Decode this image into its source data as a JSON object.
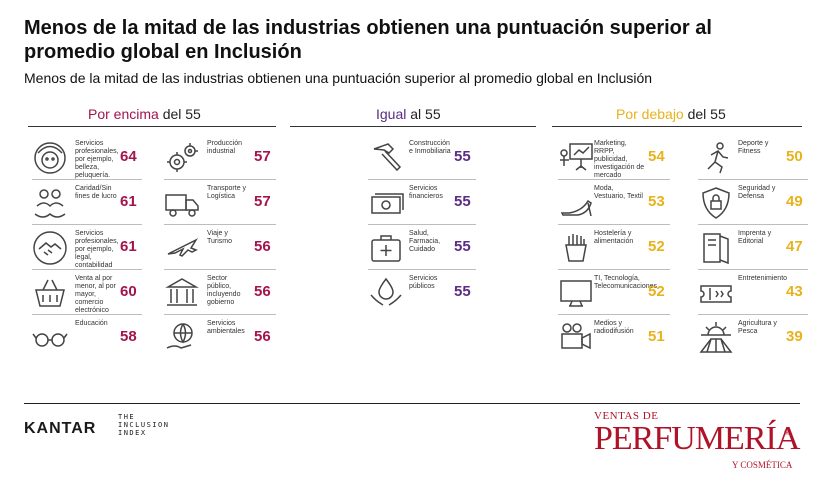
{
  "title": "Menos de la mitad de las industrias obtienen una puntuación superior al promedio global en Inclusión",
  "subtitle": "Menos de la mitad de las industrias obtienen una puntuación superior al promedio global en Inclusión",
  "colors": {
    "above": "#a3144d",
    "equal": "#5b2c83",
    "below": "#e8b21c",
    "text": "#333333"
  },
  "chart_data": {
    "type": "table",
    "groups": [
      {
        "key_word": "Por encima",
        "rest": " del 55",
        "color": "#a3144d",
        "items": [
          {
            "label": "Servicios profesionales, por ejemplo, belleza, peluquería.",
            "value": 64,
            "icon": "woman-face-icon"
          },
          {
            "label": "Producción industrial",
            "value": 57,
            "icon": "gears-icon"
          },
          {
            "label": "Caridad/Sin fines de lucro",
            "value": 61,
            "icon": "charity-hands-icon"
          },
          {
            "label": "Transporte y Logística",
            "value": 57,
            "icon": "truck-icon"
          },
          {
            "label": "Servicios profesionales, por ejemplo, legal, contabilidad",
            "value": 61,
            "icon": "handshake-icon"
          },
          {
            "label": "Viaje y Turismo",
            "value": 56,
            "icon": "airplane-icon"
          },
          {
            "label": "Venta al por menor, al por mayor, comercio electrónico",
            "value": 60,
            "icon": "basket-icon"
          },
          {
            "label": "Sector público, incluyendo gobierno",
            "value": 56,
            "icon": "government-building-icon"
          },
          {
            "label": "Educación",
            "value": 58,
            "icon": "glasses-icon"
          },
          {
            "label": "Servicios ambientales",
            "value": 56,
            "icon": "globe-hand-icon"
          }
        ]
      },
      {
        "key_word": "Igual",
        "rest": " al 55",
        "color": "#5b2c83",
        "items": [
          {
            "label": "Construcción e Inmobiliaria",
            "value": 55,
            "icon": "hammer-icon"
          },
          {
            "label": "Servicios financieros",
            "value": 55,
            "icon": "banknote-icon"
          },
          {
            "label": "Salud, Farmacia, Cuidado",
            "value": 55,
            "icon": "medical-bag-icon"
          },
          {
            "label": "Servicios públicos",
            "value": 55,
            "icon": "water-drop-hands-icon"
          }
        ]
      },
      {
        "key_word": "Por debajo",
        "rest": " del 55",
        "color": "#e8b21c",
        "items": [
          {
            "label": "Marketing, RRPP, publicidad, investigación de mercado",
            "value": 54,
            "icon": "presentation-icon"
          },
          {
            "label": "Deporte y Fitness",
            "value": 50,
            "icon": "runner-icon"
          },
          {
            "label": "Moda, Vestuario, Textil",
            "value": 53,
            "icon": "high-heel-icon"
          },
          {
            "label": "Seguridad y Defensa",
            "value": 49,
            "icon": "shield-lock-icon"
          },
          {
            "label": "Hostelería y alimentación",
            "value": 52,
            "icon": "fries-icon"
          },
          {
            "label": "Imprenta y Editorial",
            "value": 47,
            "icon": "book-icon"
          },
          {
            "label": "TI, Tecnología, Telecomunicaciones",
            "value": 52,
            "icon": "monitor-icon"
          },
          {
            "label": "Entretenimiento",
            "value": 43,
            "icon": "ticket-icon"
          },
          {
            "label": "Medios y radiodifusión",
            "value": 51,
            "icon": "video-camera-icon"
          },
          {
            "label": "Agricultura y Pesca",
            "value": 39,
            "icon": "sunrise-field-icon"
          }
        ]
      }
    ]
  },
  "footer": {
    "kantar": "KANTAR",
    "inclusion_index": [
      "THE",
      "INCLUSION",
      "INDEX"
    ],
    "vp_line1": "VENTAS DE",
    "vp_line2": "PERFUMERÍA",
    "vp_reg": "®",
    "vp_line3": "Y COSMÉTICA"
  }
}
